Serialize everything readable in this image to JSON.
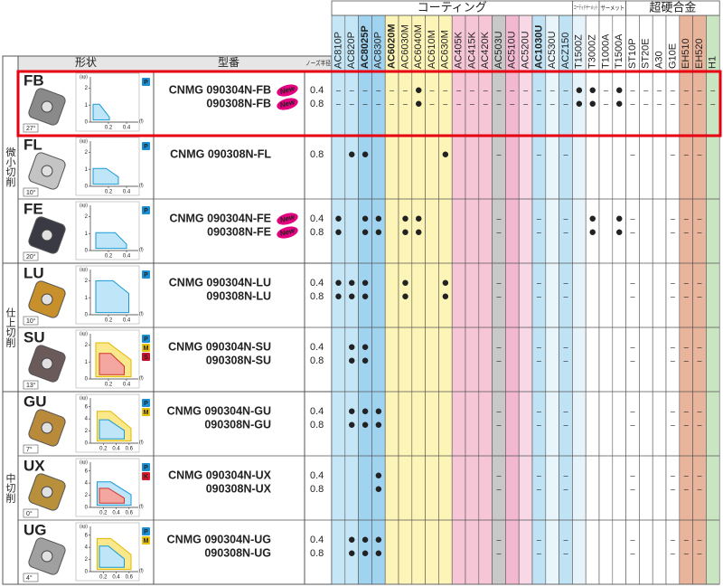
{
  "header": {
    "coating": "コーティング",
    "coated_cermet": "コーテッドサーメット",
    "cermet": "サーメット",
    "carbide": "超硬合金",
    "shape": "形状",
    "model": "型番",
    "nose": "ノーズ半径"
  },
  "sections": [
    {
      "label": "微小切削"
    },
    {
      "label": "仕上切削"
    },
    {
      "label": "中切削"
    }
  ],
  "pill_colors": {
    "P": "#1a8fd6",
    "M": "#e8c200",
    "S": "#c8102e",
    "K": "#d81b2b"
  },
  "grades": [
    {
      "name": "AC810P",
      "color": "#c5e6f7",
      "text_color": "#222"
    },
    {
      "name": "AC820P",
      "color": "#c5e6f7",
      "text_color": "#222"
    },
    {
      "name": "AC8025P",
      "color": "#9fd3f0",
      "text_color": "#e60012"
    },
    {
      "name": "AC830P",
      "color": "#9fd3f0",
      "text_color": "#222"
    },
    {
      "name": "AC6020M",
      "color": "#fdf5b8",
      "text_color": "#e60012"
    },
    {
      "name": "AC6030M",
      "color": "#fdf5b8",
      "text_color": "#222"
    },
    {
      "name": "AC6040M",
      "color": "#fdf5b8",
      "text_color": "#222"
    },
    {
      "name": "AC610M",
      "color": "#fdf5b8",
      "text_color": "#222"
    },
    {
      "name": "AC630M",
      "color": "#fdf5b8",
      "text_color": "#222"
    },
    {
      "name": "AC405K",
      "color": "#f6c6d6",
      "text_color": "#222"
    },
    {
      "name": "AC415K",
      "color": "#f6c6d6",
      "text_color": "#222"
    },
    {
      "name": "AC420K",
      "color": "#f6c6d6",
      "text_color": "#222"
    },
    {
      "name": "AC503U",
      "color": "#c8c8c8",
      "text_color": "#222"
    },
    {
      "name": "AC510U",
      "color": "#f2b8cf",
      "text_color": "#222"
    },
    {
      "name": "AC520U",
      "color": "#f8d8e4",
      "text_color": "#222"
    },
    {
      "name": "AC1030U",
      "color": "#bfe3f5",
      "text_color": "#e60012"
    },
    {
      "name": "AC530U",
      "color": "#e8f5fb",
      "text_color": "#222"
    },
    {
      "name": "ACZ150",
      "color": "#bfe3f5",
      "text_color": "#222"
    },
    {
      "name": "T1500Z",
      "color": "#e6f3fb",
      "text_color": "#222"
    },
    {
      "name": "T3000Z",
      "color": "#ffffff",
      "text_color": "#222"
    },
    {
      "name": "T1000A",
      "color": "#ffffff",
      "text_color": "#222"
    },
    {
      "name": "T1500A",
      "color": "#ffffff",
      "text_color": "#222"
    },
    {
      "name": "ST10P",
      "color": "#ffffff",
      "text_color": "#222"
    },
    {
      "name": "ST20E",
      "color": "#ffffff",
      "text_color": "#222"
    },
    {
      "name": "A30",
      "color": "#ffffff",
      "text_color": "#222"
    },
    {
      "name": "G10E",
      "color": "#ffffff",
      "text_color": "#222"
    },
    {
      "name": "EH510",
      "color": "#e9b49c",
      "text_color": "#222"
    },
    {
      "name": "EH520",
      "color": "#e9b49c",
      "text_color": "#222"
    },
    {
      "name": "H1",
      "color": "#c9e5c2",
      "text_color": "#222"
    }
  ],
  "rows": [
    {
      "code": "FB",
      "code_color": "#e4007f",
      "angle": "27°",
      "insert_color": "#8a8a8a",
      "pills": [
        "P"
      ],
      "chart": {
        "ylabel": "(ap)",
        "xlabel": "(f)",
        "xlim": [
          0,
          0.5
        ],
        "ylim": [
          0,
          2.5
        ],
        "xticks": [
          0.2,
          0.4
        ],
        "yticks": [
          0,
          1,
          2
        ]
      },
      "models": [
        "CNMG 090304N-FB",
        "090308N-FB"
      ],
      "badges": [
        "New",
        "New"
      ],
      "nose": [
        "0.4",
        "0.8"
      ],
      "cells": [
        [
          "–",
          "–",
          "–",
          "–",
          "–",
          "–",
          "●",
          "–",
          "–",
          "–",
          "–",
          "–",
          "–",
          "–",
          "–",
          "–",
          "–",
          "–",
          "●",
          "●",
          "–",
          "●",
          "–",
          "–",
          "–",
          "–",
          "–",
          "–",
          "–"
        ],
        [
          "–",
          "–",
          "–",
          "–",
          "–",
          "–",
          "●",
          "–",
          "–",
          "–",
          "–",
          "–",
          "–",
          "–",
          "–",
          "–",
          "–",
          "–",
          "●",
          "●",
          "–",
          "●",
          "–",
          "–",
          "–",
          "–",
          "–",
          "–",
          "–"
        ]
      ]
    },
    {
      "code": "FL",
      "code_color": "#222",
      "angle": "10°",
      "insert_color": "#c4c4c4",
      "pills": [
        "P"
      ],
      "chart": {
        "ylabel": "(ap)",
        "xlabel": "(f)",
        "xlim": [
          0,
          0.5
        ],
        "ylim": [
          0,
          2.5
        ],
        "xticks": [
          0.2,
          0.4
        ],
        "yticks": [
          0,
          1,
          2
        ]
      },
      "models": [
        "CNMG 090308N-FL"
      ],
      "nose": [
        "0.8"
      ],
      "cells": [
        [
          null,
          "●",
          "●",
          null,
          null,
          null,
          null,
          null,
          "●",
          null,
          null,
          null,
          "–",
          null,
          null,
          "–",
          null,
          "–",
          null,
          null,
          null,
          null,
          "–",
          null,
          null,
          "–",
          "–",
          "–",
          null
        ]
      ]
    },
    {
      "code": "FE",
      "code_color": "#e4007f",
      "angle": "20°",
      "insert_color": "#3a3a44",
      "pills": [
        "P"
      ],
      "chart": {
        "ylabel": "(ap)",
        "xlabel": "(f)",
        "xlim": [
          0,
          0.5
        ],
        "ylim": [
          0,
          2.5
        ],
        "xticks": [
          0.2,
          0.4
        ],
        "yticks": [
          0,
          1,
          2
        ]
      },
      "models": [
        "CNMG 090304N-FE",
        "090308N-FE"
      ],
      "badges": [
        "New",
        "New"
      ],
      "nose": [
        "0.4",
        "0.8"
      ],
      "cells": [
        [
          "●",
          null,
          "●",
          "●",
          null,
          "●",
          "●",
          null,
          null,
          null,
          null,
          null,
          "–",
          null,
          null,
          "–",
          null,
          "–",
          null,
          "●",
          null,
          "●",
          "–",
          null,
          null,
          "–",
          "–",
          "–",
          null
        ],
        [
          "●",
          null,
          "●",
          "●",
          null,
          "●",
          "●",
          null,
          null,
          null,
          null,
          null,
          "–",
          null,
          null,
          "–",
          null,
          "–",
          null,
          "●",
          null,
          "●",
          "–",
          null,
          null,
          "–",
          "–",
          "–",
          null
        ]
      ]
    },
    {
      "code": "LU",
      "code_color": "#222",
      "angle": "10°",
      "insert_color": "#c8902a",
      "pills": [
        "P"
      ],
      "chart": {
        "ylabel": "(ap)",
        "xlabel": "(f)",
        "xlim": [
          0,
          0.5
        ],
        "ylim": [
          0,
          2.5
        ],
        "xticks": [
          0.2,
          0.4
        ],
        "yticks": [
          0,
          1,
          2
        ]
      },
      "models": [
        "CNMG 090304N-LU",
        "090308N-LU"
      ],
      "nose": [
        "0.4",
        "0.8"
      ],
      "cells": [
        [
          "●",
          "●",
          "●",
          null,
          null,
          "●",
          null,
          null,
          "●",
          null,
          null,
          null,
          "–",
          null,
          null,
          "–",
          null,
          "–",
          null,
          null,
          null,
          null,
          "–",
          null,
          null,
          "–",
          "–",
          "–",
          null
        ],
        [
          "●",
          "●",
          "●",
          null,
          null,
          "●",
          null,
          null,
          "●",
          null,
          null,
          null,
          "–",
          null,
          null,
          "–",
          null,
          "–",
          null,
          null,
          null,
          null,
          "–",
          null,
          null,
          "–",
          "–",
          "–",
          null
        ]
      ]
    },
    {
      "code": "SU",
      "code_color": "#222",
      "angle": "13°",
      "insert_color": "#6b5a5a",
      "pills": [
        "P",
        "M",
        "S"
      ],
      "chart": {
        "ylabel": "(ap)",
        "xlabel": "(f)",
        "xlim": [
          0,
          0.5
        ],
        "ylim": [
          0,
          2.5
        ],
        "xticks": [
          0.2,
          0.4
        ],
        "yticks": [
          0,
          1,
          2
        ]
      },
      "models": [
        "CNMG 090304N-SU",
        "090308N-SU"
      ],
      "nose": [
        "0.4",
        "0.8"
      ],
      "cells": [
        [
          null,
          "●",
          "●",
          null,
          null,
          null,
          null,
          null,
          null,
          null,
          null,
          null,
          "–",
          null,
          null,
          "–",
          null,
          "–",
          null,
          null,
          null,
          null,
          "–",
          null,
          null,
          "–",
          "–",
          "–",
          null
        ],
        [
          null,
          "●",
          "●",
          null,
          null,
          null,
          null,
          null,
          null,
          null,
          null,
          null,
          "–",
          null,
          null,
          "–",
          null,
          "–",
          null,
          null,
          null,
          null,
          "–",
          null,
          null,
          "–",
          "–",
          "–",
          null
        ]
      ]
    },
    {
      "code": "GU",
      "code_color": "#222",
      "angle": "7°",
      "insert_color": "#b88a3a",
      "pills": [
        "P",
        "M"
      ],
      "chart": {
        "ylabel": "(ap)",
        "xlabel": "(f)",
        "xlim": [
          0,
          0.7
        ],
        "ylim": [
          0,
          7
        ],
        "xticks": [
          0.2,
          0.4,
          0.6
        ],
        "yticks": [
          0,
          2,
          4,
          6
        ]
      },
      "models": [
        "CNMG 090304N-GU",
        "090308N-GU"
      ],
      "nose": [
        "0.4",
        "0.8"
      ],
      "cells": [
        [
          null,
          "●",
          "●",
          "●",
          null,
          null,
          null,
          null,
          null,
          null,
          null,
          null,
          "–",
          null,
          null,
          "–",
          null,
          "–",
          null,
          null,
          null,
          null,
          "–",
          null,
          null,
          "–",
          "–",
          "–",
          null
        ],
        [
          null,
          "●",
          "●",
          "●",
          null,
          null,
          null,
          null,
          null,
          null,
          null,
          null,
          "–",
          null,
          null,
          "–",
          null,
          "–",
          null,
          null,
          null,
          null,
          "–",
          null,
          null,
          "–",
          "–",
          "–",
          null
        ]
      ]
    },
    {
      "code": "UX",
      "code_color": "#222",
      "angle": "0°",
      "insert_color": "#b8903c",
      "pills": [
        "P",
        "K"
      ],
      "chart": {
        "ylabel": "(ap)",
        "xlabel": "(f)",
        "xlim": [
          0,
          0.7
        ],
        "ylim": [
          0,
          7
        ],
        "xticks": [
          0.2,
          0.4,
          0.6
        ],
        "yticks": [
          0,
          2,
          4,
          6
        ]
      },
      "models": [
        "CNMG 090304N-UX",
        "090308N-UX"
      ],
      "nose": [
        "0.4",
        "0.8"
      ],
      "cells": [
        [
          null,
          null,
          null,
          "●",
          null,
          null,
          null,
          null,
          null,
          null,
          null,
          null,
          "–",
          null,
          null,
          "–",
          null,
          "–",
          null,
          null,
          null,
          null,
          "–",
          null,
          null,
          "–",
          "–",
          "–",
          null
        ],
        [
          null,
          null,
          null,
          "●",
          null,
          null,
          null,
          null,
          null,
          null,
          null,
          null,
          "–",
          null,
          null,
          "–",
          null,
          "–",
          null,
          null,
          null,
          null,
          "–",
          null,
          null,
          "–",
          "–",
          "–",
          null
        ]
      ]
    },
    {
      "code": "UG",
      "code_color": "#222",
      "angle": "4°",
      "insert_color": "#a0a0a0",
      "pills": [
        "P",
        "M"
      ],
      "chart": {
        "ylabel": "(ap)",
        "xlabel": "(f)",
        "xlim": [
          0,
          0.7
        ],
        "ylim": [
          0,
          7
        ],
        "xticks": [
          0.2,
          0.4,
          0.6
        ],
        "yticks": [
          0,
          2,
          4,
          6
        ]
      },
      "models": [
        "CNMG 090304N-UG",
        "090308N-UG"
      ],
      "nose": [
        "0.4",
        "0.8"
      ],
      "cells": [
        [
          null,
          "●",
          "●",
          "●",
          null,
          null,
          null,
          null,
          null,
          null,
          null,
          null,
          "–",
          null,
          null,
          "–",
          null,
          "–",
          null,
          null,
          null,
          null,
          "–",
          null,
          null,
          "–",
          "–",
          "–",
          null
        ],
        [
          null,
          "●",
          "●",
          "●",
          null,
          null,
          null,
          null,
          null,
          null,
          null,
          null,
          "–",
          null,
          null,
          "–",
          null,
          "–",
          null,
          null,
          null,
          null,
          "–",
          null,
          null,
          "–",
          "–",
          "–",
          null
        ]
      ]
    }
  ]
}
